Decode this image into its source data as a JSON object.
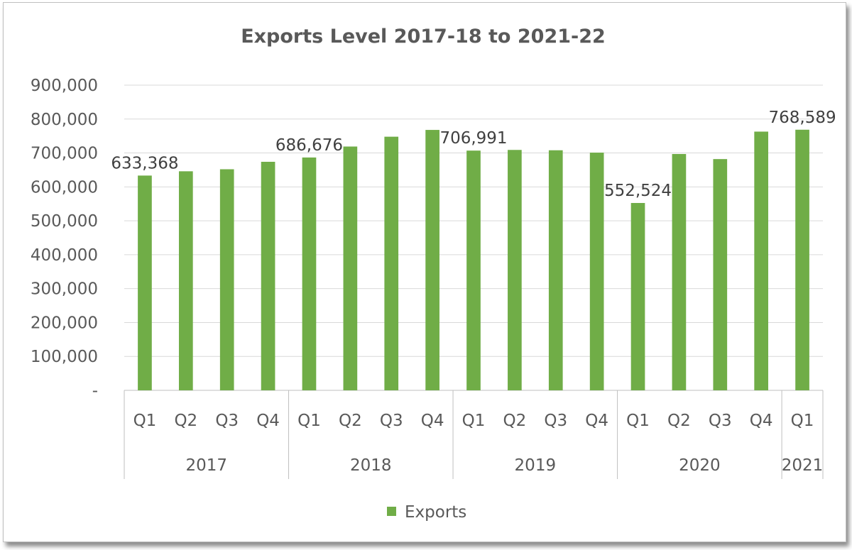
{
  "chart_data": {
    "type": "bar",
    "title": "Exports Level 2017-18 to 2021-22",
    "xlabel": "",
    "ylabel": "",
    "ylim": [
      0,
      900000
    ],
    "y_ticks": [
      0,
      100000,
      200000,
      300000,
      400000,
      500000,
      600000,
      700000,
      800000,
      900000
    ],
    "y_tick_labels": [
      "-",
      "100,000",
      "200,000",
      "300,000",
      "400,000",
      "500,000",
      "600,000",
      "700,000",
      "800,000",
      "900,000"
    ],
    "grid": true,
    "legend_position": "bottom",
    "bar_color": "#70ad47",
    "groups": [
      {
        "label": "2017",
        "categories": [
          "Q1",
          "Q2",
          "Q3",
          "Q4"
        ]
      },
      {
        "label": "2018",
        "categories": [
          "Q1",
          "Q2",
          "Q3",
          "Q4"
        ]
      },
      {
        "label": "2019",
        "categories": [
          "Q1",
          "Q2",
          "Q3",
          "Q4"
        ]
      },
      {
        "label": "2020",
        "categories": [
          "Q1",
          "Q2",
          "Q3",
          "Q4"
        ]
      },
      {
        "label": "2021",
        "categories": [
          "Q1"
        ]
      }
    ],
    "series": [
      {
        "name": "Exports",
        "values": [
          633368,
          646000,
          652000,
          674000,
          686676,
          719000,
          748000,
          768000,
          706991,
          709000,
          708000,
          701000,
          552524,
          697000,
          682000,
          763000,
          768589
        ]
      }
    ],
    "data_labels": [
      {
        "index": 0,
        "text": "633,368"
      },
      {
        "index": 4,
        "text": "686,676"
      },
      {
        "index": 8,
        "text": "706,991"
      },
      {
        "index": 12,
        "text": "552,524"
      },
      {
        "index": 16,
        "text": "768,589"
      }
    ]
  }
}
